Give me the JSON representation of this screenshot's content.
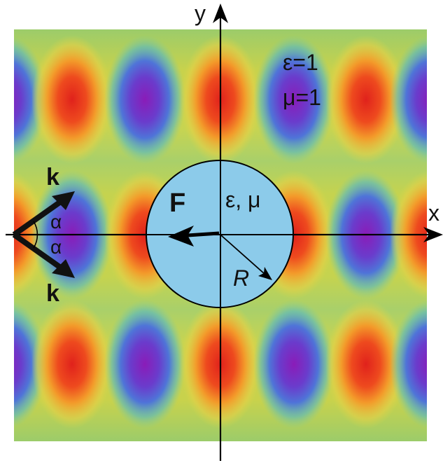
{
  "labels": {
    "y_axis": "y",
    "x_axis": "x",
    "outer_epsilon": "ε=1",
    "outer_mu": "μ=1",
    "sphere_params": "ε, μ",
    "force": "F",
    "radius": "R",
    "wavevector_upper": "k",
    "wavevector_lower": "k",
    "angle_upper": "α",
    "angle_lower": "α"
  },
  "colors": {
    "sphere_fill": "#8ccbea",
    "field_peak": "#e8301c",
    "field_trough": "#8a20b8",
    "field_mid": "#b9d455",
    "axis": "#000000"
  }
}
